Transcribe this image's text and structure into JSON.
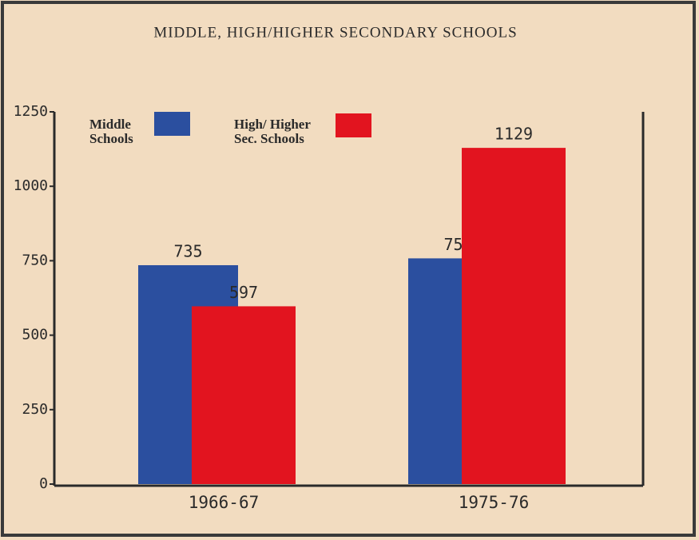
{
  "chart_data": {
    "type": "bar",
    "title": "MIDDLE, HIGH/HIGHER SECONDARY SCHOOLS",
    "categories": [
      "1966-67",
      "1975-76"
    ],
    "series": [
      {
        "name": "Middle Schools",
        "color": "#2b4f9f",
        "values": [
          735,
          758
        ]
      },
      {
        "name": "High/ Higher Sec. Schools",
        "color": "#e2141f",
        "values": [
          597,
          1129
        ]
      }
    ],
    "ylim": [
      0,
      1250
    ],
    "yticks": [
      0,
      250,
      500,
      750,
      1000,
      1250
    ],
    "grid": false,
    "legend": "top-left"
  }
}
